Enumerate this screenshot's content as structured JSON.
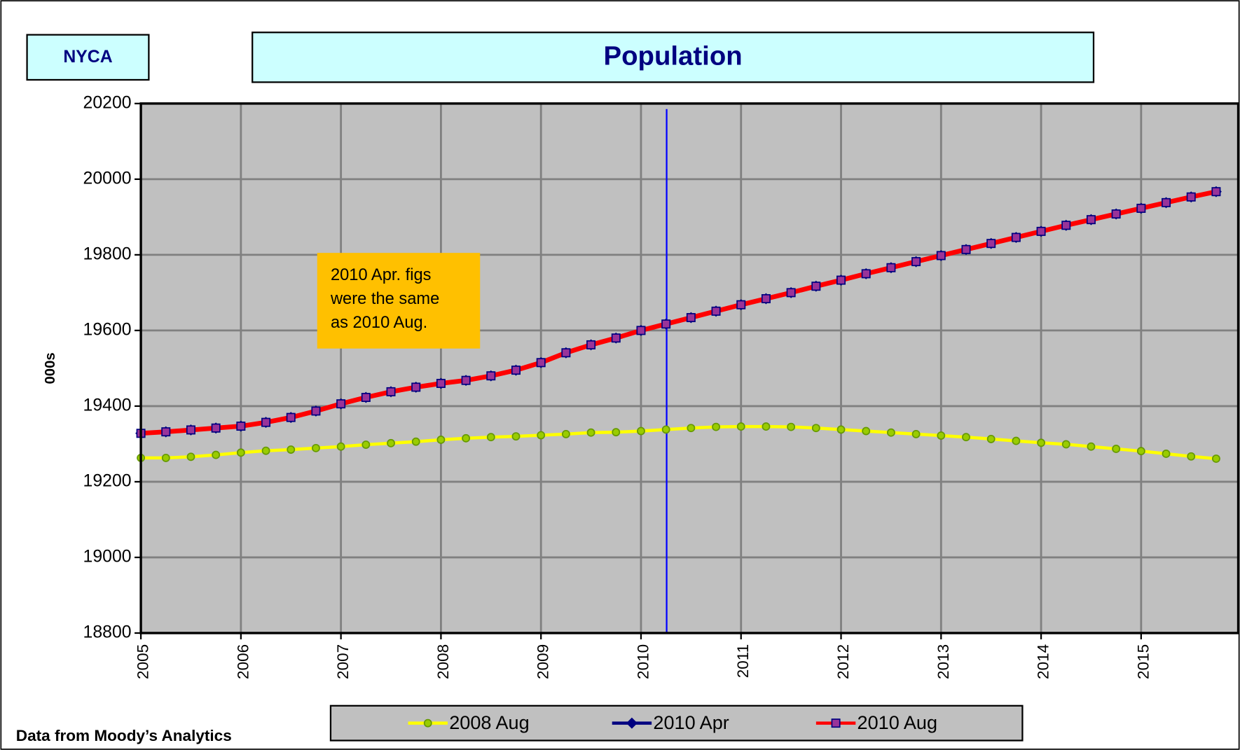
{
  "chart_data": {
    "type": "line",
    "label_box": "NYCA",
    "title": "Population",
    "y_label": "000s",
    "annotation": "2010 Apr. figs\nwere the same\nas 2010 Aug.",
    "source": "Data from Moody’s Analytics",
    "categories": [
      "2005",
      null,
      null,
      null,
      "2006",
      null,
      null,
      null,
      "2007",
      null,
      null,
      null,
      "2008",
      null,
      null,
      null,
      "2009",
      null,
      null,
      null,
      "2010",
      null,
      null,
      null,
      "2011",
      null,
      null,
      null,
      "2012",
      null,
      null,
      null,
      "2013",
      null,
      null,
      null,
      "2014",
      null,
      null,
      null,
      "2015",
      null,
      null,
      null
    ],
    "series": [
      {
        "name": "2008 Aug",
        "color": "#ffff00",
        "marker_color": "#99cc00",
        "marker_edge": "#669900",
        "marker": "circle",
        "values": [
          19263,
          19263,
          19266,
          19271,
          19277,
          19282,
          19285,
          19289,
          19293,
          19298,
          19302,
          19306,
          19311,
          19315,
          19318,
          19320,
          19323,
          19326,
          19330,
          19331,
          19334,
          19338,
          19342,
          19345,
          19346,
          19346,
          19345,
          19342,
          19338,
          19334,
          19330,
          19326,
          19322,
          19318,
          19313,
          19308,
          19303,
          19299,
          19293,
          19287,
          19281,
          19274,
          19267,
          19261
        ]
      },
      {
        "name": "2010 Apr",
        "color": "#000080",
        "marker_color": "#000080",
        "marker_edge": "#000080",
        "marker": "diamond",
        "values": [
          19328,
          19332,
          19337,
          19342,
          19347,
          19357,
          19370,
          19387,
          19406,
          19423,
          19438,
          19450,
          19460,
          19468,
          19480,
          19495,
          19515,
          19541,
          19562,
          19580,
          19600,
          19617,
          19634,
          19651,
          19668,
          19684,
          19700,
          19717,
          19733,
          19750,
          19766,
          19782,
          19798,
          19814,
          19830,
          19846,
          19862,
          19878,
          19893,
          19908,
          19923,
          19938,
          19953,
          19967
        ]
      },
      {
        "name": "2010 Aug",
        "color": "#ff0000",
        "marker_color": "#993399",
        "marker_edge": "#000080",
        "marker": "square",
        "values": [
          19328,
          19332,
          19337,
          19342,
          19347,
          19357,
          19370,
          19387,
          19406,
          19423,
          19438,
          19450,
          19460,
          19468,
          19480,
          19495,
          19515,
          19541,
          19562,
          19580,
          19600,
          19617,
          19634,
          19651,
          19668,
          19684,
          19700,
          19717,
          19733,
          19750,
          19766,
          19782,
          19798,
          19814,
          19830,
          19846,
          19862,
          19878,
          19893,
          19908,
          19923,
          19938,
          19953,
          19967
        ]
      }
    ],
    "ylim": [
      18800,
      20200
    ],
    "yticks": [
      18800,
      19000,
      19200,
      19400,
      19600,
      19800,
      20000,
      20200
    ],
    "grid": true,
    "plot_color": "#c0c0c0"
  }
}
